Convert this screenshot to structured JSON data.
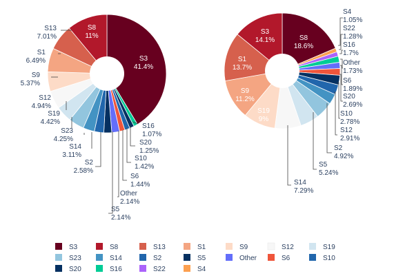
{
  "chart_data": [
    {
      "type": "pie",
      "hole": true,
      "slices": [
        {
          "label": "S3",
          "pct_text": "41.4%",
          "value": 41.4,
          "color": "#67001f"
        },
        {
          "label": "S16",
          "pct_text": "1.07%",
          "value": 1.07,
          "color": "#00cc96"
        },
        {
          "label": "S20",
          "pct_text": "1.25%",
          "value": 1.25,
          "color": "#053061"
        },
        {
          "label": "S10",
          "pct_text": "1.42%",
          "value": 1.42,
          "color": "#2166ac"
        },
        {
          "label": "S6",
          "pct_text": "1.44%",
          "value": 1.44,
          "color": "#ef553b"
        },
        {
          "label": "Other",
          "pct_text": "2.14%",
          "value": 2.14,
          "color": "#636efa"
        },
        {
          "label": "S5",
          "pct_text": "2.14%",
          "value": 2.14,
          "color": "#053061"
        },
        {
          "label": "S2",
          "pct_text": "2.58%",
          "value": 2.58,
          "color": "#2166ac"
        },
        {
          "label": "S14",
          "pct_text": "3.11%",
          "value": 3.11,
          "color": "#4393c3"
        },
        {
          "label": "S23",
          "pct_text": "4.25%",
          "value": 4.25,
          "color": "#92c5de"
        },
        {
          "label": "S19",
          "pct_text": "4.42%",
          "value": 4.42,
          "color": "#d1e5f0"
        },
        {
          "label": "S12",
          "pct_text": "4.94%",
          "value": 4.94,
          "color": "#f7f7f7"
        },
        {
          "label": "S9",
          "pct_text": "5.37%",
          "value": 5.37,
          "color": "#fddbc7"
        },
        {
          "label": "S1",
          "pct_text": "6.49%",
          "value": 6.49,
          "color": "#f4a582"
        },
        {
          "label": "S13",
          "pct_text": "7.01%",
          "value": 7.01,
          "color": "#d6604d"
        },
        {
          "label": "S8",
          "pct_text": "11%",
          "value": 11.0,
          "color": "#b2182b"
        }
      ]
    },
    {
      "type": "pie",
      "hole": true,
      "slices": [
        {
          "label": "S8",
          "pct_text": "18.6%",
          "value": 18.6,
          "color": "#67001f"
        },
        {
          "label": "S4",
          "pct_text": "1.05%",
          "value": 1.05,
          "color": "#fca050"
        },
        {
          "label": "S22",
          "pct_text": "1.28%",
          "value": 1.28,
          "color": "#ab63fa"
        },
        {
          "label": "S16",
          "pct_text": "1.7%",
          "value": 1.7,
          "color": "#00cc96"
        },
        {
          "label": "Other",
          "pct_text": "1.73%",
          "value": 1.73,
          "color": "#636efa"
        },
        {
          "label": "S6",
          "pct_text": "1.89%",
          "value": 1.89,
          "color": "#ef553b"
        },
        {
          "label": "S20",
          "pct_text": "2.69%",
          "value": 2.69,
          "color": "#053061"
        },
        {
          "label": "S10",
          "pct_text": "2.78%",
          "value": 2.78,
          "color": "#2166ac"
        },
        {
          "label": "S12",
          "pct_text": "2.91%",
          "value": 2.91,
          "color": "#4393c3"
        },
        {
          "label": "S2",
          "pct_text": "4.92%",
          "value": 4.92,
          "color": "#92c5de"
        },
        {
          "label": "S5",
          "pct_text": "5.24%",
          "value": 5.24,
          "color": "#d1e5f0"
        },
        {
          "label": "S14",
          "pct_text": "7.29%",
          "value": 7.29,
          "color": "#f7f7f7"
        },
        {
          "label": "S19",
          "pct_text": "9%",
          "value": 9.0,
          "color": "#fddbc7"
        },
        {
          "label": "S9",
          "pct_text": "11.2%",
          "value": 11.2,
          "color": "#f4a582"
        },
        {
          "label": "S1",
          "pct_text": "13.7%",
          "value": 13.7,
          "color": "#d6604d"
        },
        {
          "label": "S3",
          "pct_text": "14.1%",
          "value": 14.1,
          "color": "#b2182b"
        }
      ]
    }
  ],
  "legend": {
    "placement": "bottom",
    "items": [
      {
        "label": "S3",
        "color": "#67001f"
      },
      {
        "label": "S8",
        "color": "#b2182b"
      },
      {
        "label": "S13",
        "color": "#d6604d"
      },
      {
        "label": "S1",
        "color": "#f4a582"
      },
      {
        "label": "S9",
        "color": "#fddbc7"
      },
      {
        "label": "S12",
        "color": "#f7f7f7"
      },
      {
        "label": "S19",
        "color": "#d1e5f0"
      },
      {
        "label": "S23",
        "color": "#92c5de"
      },
      {
        "label": "S14",
        "color": "#4393c3"
      },
      {
        "label": "S2",
        "color": "#2166ac"
      },
      {
        "label": "S5",
        "color": "#053061"
      },
      {
        "label": "Other",
        "color": "#636efa"
      },
      {
        "label": "S6",
        "color": "#ef553b"
      },
      {
        "label": "S10",
        "color": "#2166ac"
      },
      {
        "label": "S20",
        "color": "#053061"
      },
      {
        "label": "S16",
        "color": "#00cc96"
      },
      {
        "label": "S22",
        "color": "#ab63fa"
      },
      {
        "label": "S4",
        "color": "#fca050"
      }
    ]
  }
}
